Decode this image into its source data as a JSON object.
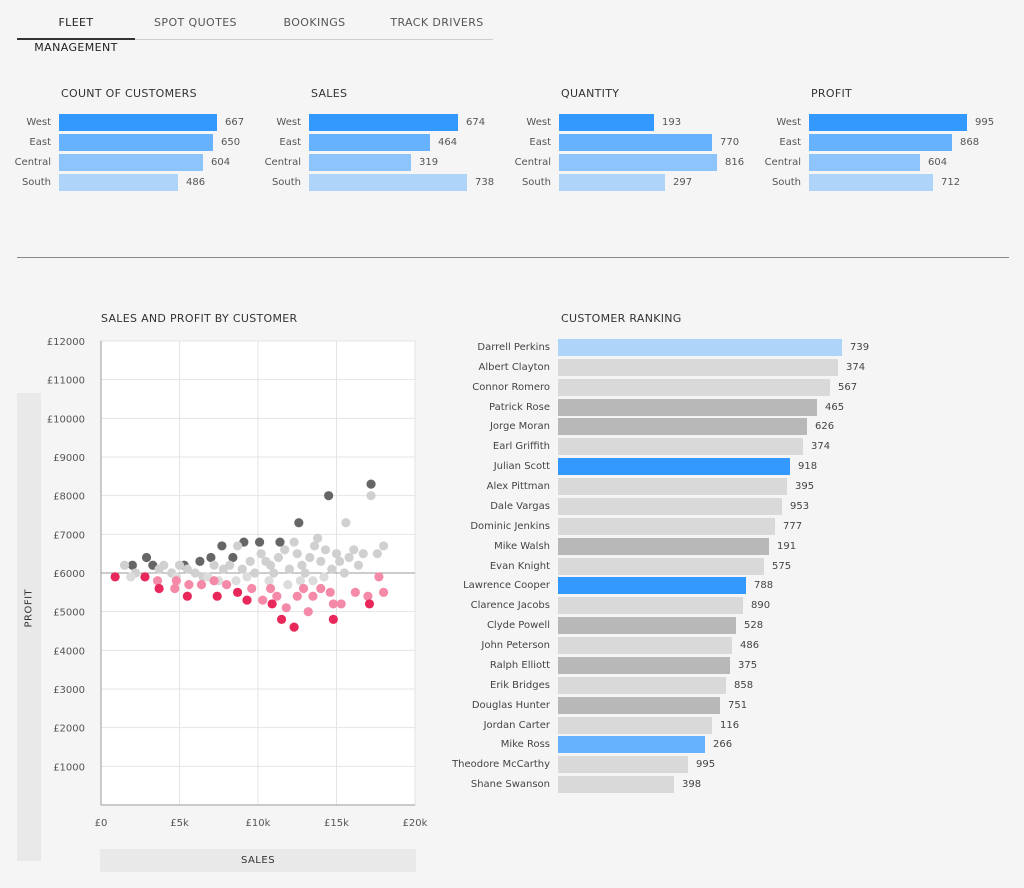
{
  "tabs": [
    {
      "label": "FLEET MANAGEMENT",
      "active": true
    },
    {
      "label": "SPOT QUOTES",
      "active": false
    },
    {
      "label": "BOOKINGS",
      "active": false
    },
    {
      "label": "TRACK DRIVERS",
      "active": false
    }
  ],
  "colors": {
    "strong": "#3399ff",
    "medium": "#66b2ff",
    "light": "#8cc4fb",
    "pale": "#aed4fa",
    "gray": "#d9d9d9",
    "darkgray": "#b8b8b8"
  },
  "chart_data": [
    {
      "type": "bar",
      "title": "COUNT OF CUSTOMERS",
      "categories": [
        "West",
        "East",
        "Central",
        "South"
      ],
      "values": [
        667,
        650,
        604,
        486
      ]
    },
    {
      "type": "bar",
      "title": "SALES",
      "categories": [
        "West",
        "East",
        "Central",
        "South"
      ],
      "values": [
        674,
        464,
        319,
        738
      ]
    },
    {
      "type": "bar",
      "title": "QUANTITY",
      "categories": [
        "West",
        "East",
        "Central",
        "South"
      ],
      "values": [
        193,
        770,
        816,
        297
      ]
    },
    {
      "type": "bar",
      "title": "PROFIT",
      "categories": [
        "West",
        "East",
        "Central",
        "South"
      ],
      "values": [
        995,
        868,
        604,
        712
      ]
    },
    {
      "type": "scatter",
      "title": "SALES AND PROFIT BY CUSTOMER",
      "xlabel": "SALES",
      "ylabel": "PROFIT",
      "xlim": [
        0,
        20000
      ],
      "ylim": [
        0,
        12000
      ],
      "xticks": [
        "£0",
        "£5k",
        "£10k",
        "£15k",
        "£20k"
      ],
      "yticks": [
        "£1000",
        "£2000",
        "£3000",
        "£4000",
        "£5000",
        "£6000",
        "£7000",
        "£8000",
        "£9000",
        "£10000",
        "£11000",
        "£12000"
      ],
      "reference_y": 6000,
      "series": [
        {
          "group": "high",
          "color": "#666666",
          "points": [
            [
              2000,
              6200
            ],
            [
              2900,
              6400
            ],
            [
              3300,
              6200
            ],
            [
              5300,
              6200
            ],
            [
              6300,
              6300
            ],
            [
              7000,
              6400
            ],
            [
              7700,
              6700
            ],
            [
              8400,
              6400
            ],
            [
              9100,
              6800
            ],
            [
              10100,
              6800
            ],
            [
              11400,
              6800
            ],
            [
              12600,
              7300
            ],
            [
              14500,
              8000
            ],
            [
              17200,
              8300
            ]
          ]
        },
        {
          "group": "neutral-high",
          "color": "#d0d0d0",
          "points": [
            [
              1500,
              6200
            ],
            [
              2200,
              6000
            ],
            [
              3700,
              6100
            ],
            [
              4000,
              6200
            ],
            [
              4500,
              6000
            ],
            [
              5000,
              6200
            ],
            [
              5500,
              6100
            ],
            [
              6000,
              6000
            ],
            [
              6500,
              5900
            ],
            [
              7200,
              6200
            ],
            [
              7800,
              6100
            ],
            [
              8200,
              6200
            ],
            [
              8700,
              6700
            ],
            [
              9000,
              6100
            ],
            [
              9500,
              6300
            ],
            [
              9800,
              6000
            ],
            [
              10200,
              6500
            ],
            [
              10500,
              6300
            ],
            [
              10800,
              6200
            ],
            [
              11000,
              6000
            ],
            [
              11300,
              6400
            ],
            [
              11700,
              6600
            ],
            [
              12000,
              6100
            ],
            [
              12300,
              6800
            ],
            [
              12500,
              6500
            ],
            [
              12800,
              6200
            ],
            [
              13000,
              6000
            ],
            [
              13300,
              6400
            ],
            [
              13600,
              6700
            ],
            [
              13800,
              6900
            ],
            [
              14000,
              6300
            ],
            [
              14300,
              6600
            ],
            [
              14700,
              6100
            ],
            [
              15000,
              6500
            ],
            [
              15200,
              6300
            ],
            [
              15500,
              6000
            ],
            [
              15800,
              6400
            ],
            [
              16100,
              6600
            ],
            [
              16400,
              6200
            ],
            [
              16700,
              6500
            ],
            [
              17200,
              8000
            ],
            [
              17600,
              6500
            ],
            [
              18000,
              6700
            ],
            [
              15600,
              7300
            ]
          ]
        },
        {
          "group": "neutral-low",
          "color": "#dcdcdc",
          "points": [
            [
              1900,
              5900
            ],
            [
              4800,
              5900
            ],
            [
              6800,
              5900
            ],
            [
              7500,
              5800
            ],
            [
              8600,
              5800
            ],
            [
              9300,
              5900
            ],
            [
              10700,
              5800
            ],
            [
              11900,
              5700
            ],
            [
              12700,
              5800
            ],
            [
              13500,
              5800
            ],
            [
              14200,
              5900
            ]
          ]
        },
        {
          "group": "pink",
          "color": "#f48aa8",
          "points": [
            [
              3600,
              5800
            ],
            [
              4800,
              5800
            ],
            [
              5600,
              5700
            ],
            [
              6400,
              5700
            ],
            [
              7200,
              5800
            ],
            [
              8000,
              5700
            ],
            [
              9600,
              5600
            ],
            [
              10300,
              5300
            ],
            [
              11200,
              5400
            ],
            [
              11800,
              5100
            ],
            [
              12500,
              5400
            ],
            [
              13200,
              5000
            ],
            [
              13500,
              5400
            ],
            [
              14000,
              5600
            ],
            [
              14600,
              5500
            ],
            [
              15300,
              5200
            ],
            [
              16200,
              5500
            ],
            [
              17000,
              5400
            ],
            [
              17700,
              5900
            ],
            [
              18000,
              5500
            ],
            [
              4700,
              5600
            ],
            [
              10800,
              5600
            ],
            [
              12900,
              5600
            ],
            [
              14800,
              5200
            ]
          ]
        },
        {
          "group": "red",
          "color": "#e8275a",
          "points": [
            [
              900,
              5900
            ],
            [
              2800,
              5900
            ],
            [
              3700,
              5600
            ],
            [
              5500,
              5400
            ],
            [
              7400,
              5400
            ],
            [
              8700,
              5500
            ],
            [
              9300,
              5300
            ],
            [
              10900,
              5200
            ],
            [
              11500,
              4800
            ],
            [
              12300,
              4600
            ],
            [
              14800,
              4800
            ],
            [
              17100,
              5200
            ]
          ]
        }
      ]
    },
    {
      "type": "bar",
      "title": "CUSTOMER RANKING",
      "orientation": "horizontal",
      "categories": [
        "Darrell Perkins",
        "Albert Clayton",
        "Connor Romero",
        "Patrick Rose",
        "Jorge Moran",
        "Earl Griffith",
        "Julian Scott",
        "Alex Pittman",
        "Dale Vargas",
        "Dominic Jenkins",
        "Mike Walsh",
        "Evan Knight",
        "Lawrence Cooper",
        "Clarence Jacobs",
        "Clyde Powell",
        "John Peterson",
        "Ralph Elliott",
        "Erik Bridges",
        "Douglas Hunter",
        "Jordan Carter",
        "Mike Ross",
        "Theodore McCarthy",
        "Shane Swanson"
      ],
      "values": [
        739,
        374,
        567,
        465,
        626,
        374,
        918,
        395,
        953,
        777,
        191,
        575,
        788,
        890,
        528,
        486,
        375,
        858,
        751,
        116,
        266,
        995,
        398
      ],
      "bar_lengths": [
        100,
        98.7,
        95.7,
        91.1,
        87.6,
        86.2,
        81.8,
        80.8,
        78.8,
        76.4,
        74.4,
        72.4,
        66.2,
        65.2,
        62.5,
        61.4,
        60.6,
        59.1,
        56.9,
        54.2,
        51.6,
        45.7,
        41.0
      ],
      "bar_colors": [
        "pale",
        "gray",
        "gray",
        "darkgray",
        "darkgray",
        "gray",
        "strong",
        "gray",
        "gray",
        "gray",
        "darkgray",
        "gray",
        "strong",
        "gray",
        "darkgray",
        "gray",
        "darkgray",
        "gray",
        "darkgray",
        "gray",
        "medium",
        "gray",
        "gray"
      ]
    }
  ]
}
